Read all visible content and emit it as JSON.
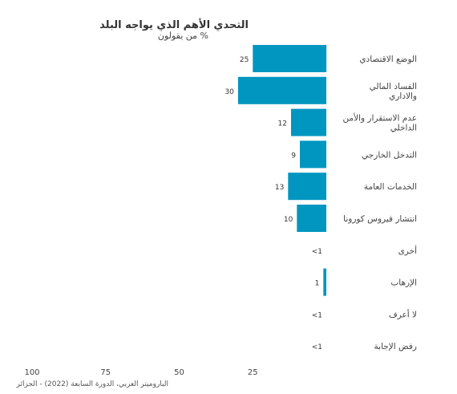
{
  "chart_data": {
    "type": "bar",
    "orientation": "horizontal",
    "title": "التحدي الأهم الذي يواجه البلد",
    "subtitle": "% من يقولون",
    "source": "الباروميتر العربي، الدورة السابعة (2022) - الجزائر",
    "categories": [
      [
        "الوضع الاقتصادي"
      ],
      [
        "الفساد المالي",
        "والاداري"
      ],
      [
        "عدم الاستقرار والأمن",
        "الداخلي"
      ],
      [
        "التدخل الخارجي"
      ],
      [
        "الخدمات العامة"
      ],
      [
        "انتشار فيروس كورونا"
      ],
      [
        "أخرى"
      ],
      [
        "الإرهاب"
      ],
      [
        "لا أعرف"
      ],
      [
        "رفض الإجابة"
      ]
    ],
    "values": [
      25,
      30,
      12,
      9,
      13,
      10,
      0.3,
      1,
      0.3,
      0.3
    ],
    "value_labels": [
      "25",
      "30",
      "12",
      "9",
      "13",
      "10",
      "<1",
      "1",
      "<1",
      "<1"
    ],
    "x_ticks": [
      25,
      50,
      75,
      100
    ],
    "xlim": [
      0,
      100
    ],
    "bar_color": "#0096c0",
    "grid": false,
    "legend": "none"
  }
}
